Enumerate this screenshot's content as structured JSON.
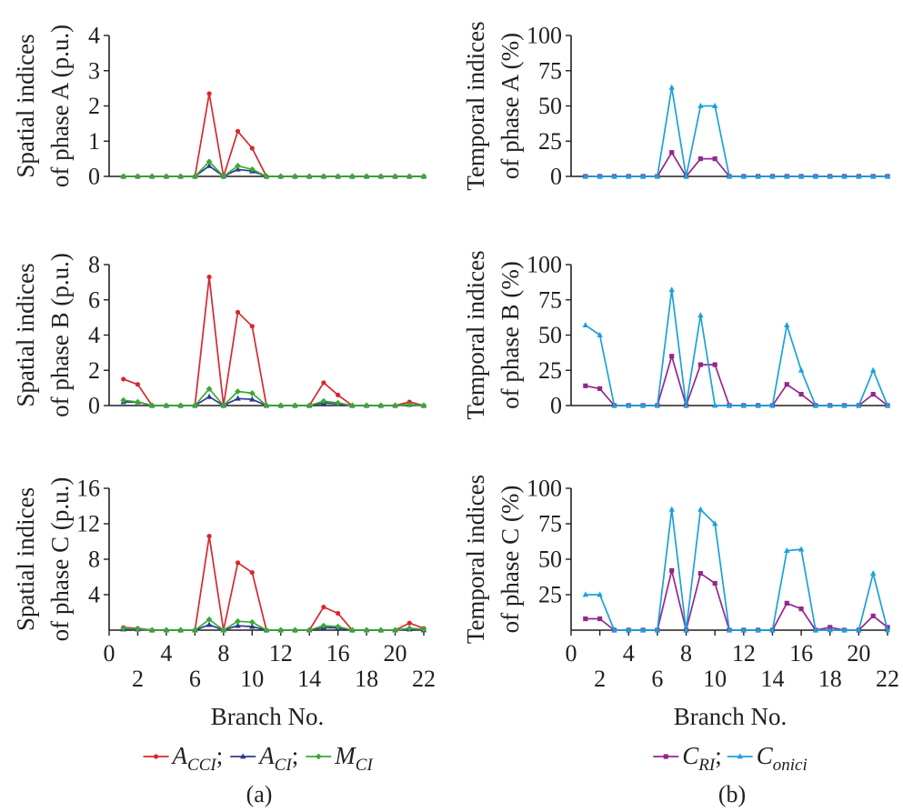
{
  "figure": {
    "panel_a_caption": "(a)",
    "panel_b_caption": "(b)",
    "x_axis_label": "Branch No.",
    "legend_a": [
      {
        "base": "A",
        "sub": "CCI",
        "sep": ";",
        "color": "#d7282f"
      },
      {
        "base": "A",
        "sub": "CI",
        "sep": ";",
        "color": "#2b3990"
      },
      {
        "base": "M",
        "sub": "CI",
        "sep": "",
        "color": "#3aaa35"
      }
    ],
    "legend_b": [
      {
        "base": "C",
        "sub": "RI",
        "sep": ";",
        "color": "#93278f"
      },
      {
        "base": "C",
        "sub": "onici",
        "sep": "",
        "color": "#1ba1d8"
      }
    ]
  },
  "chart_data": [
    {
      "type": "line",
      "panel": "a",
      "row": 0,
      "ylabel": [
        "Spatial indices",
        "of phase A (p.u.)"
      ],
      "xlim": [
        0,
        22
      ],
      "ylim": [
        0,
        4
      ],
      "yticks": [
        0,
        1,
        2,
        3,
        4
      ],
      "show_x_ticks": false,
      "x": [
        1,
        2,
        3,
        4,
        5,
        6,
        7,
        8,
        9,
        10,
        11,
        12,
        13,
        14,
        15,
        16,
        17,
        18,
        19,
        20,
        21,
        22
      ],
      "series": [
        {
          "name": "A_CCI",
          "color": "#d7282f",
          "marker": "circle",
          "values": [
            0,
            0,
            0,
            0,
            0,
            0,
            2.35,
            0,
            1.28,
            0.8,
            0,
            0,
            0,
            0,
            0,
            0,
            0,
            0,
            0,
            0,
            0,
            0
          ]
        },
        {
          "name": "A_CI",
          "color": "#2b3990",
          "marker": "triangle",
          "values": [
            0,
            0,
            0,
            0,
            0,
            0,
            0.3,
            0,
            0.2,
            0.15,
            0,
            0,
            0,
            0,
            0,
            0,
            0,
            0,
            0,
            0,
            0,
            0
          ]
        },
        {
          "name": "M_CI",
          "color": "#3aaa35",
          "marker": "diamond",
          "values": [
            0,
            0,
            0,
            0,
            0,
            0,
            0.42,
            0,
            0.3,
            0.2,
            0,
            0,
            0,
            0,
            0,
            0,
            0,
            0,
            0,
            0,
            0,
            0
          ]
        }
      ]
    },
    {
      "type": "line",
      "panel": "a",
      "row": 1,
      "ylabel": [
        "Spatial indices",
        "of phase B (p.u.)"
      ],
      "xlim": [
        0,
        22
      ],
      "ylim": [
        0,
        8
      ],
      "yticks": [
        0,
        2,
        4,
        6,
        8
      ],
      "show_x_ticks": false,
      "x": [
        1,
        2,
        3,
        4,
        5,
        6,
        7,
        8,
        9,
        10,
        11,
        12,
        13,
        14,
        15,
        16,
        17,
        18,
        19,
        20,
        21,
        22
      ],
      "series": [
        {
          "name": "A_CCI",
          "color": "#d7282f",
          "marker": "circle",
          "values": [
            1.5,
            1.2,
            0,
            0,
            0,
            0,
            7.3,
            0,
            5.3,
            4.5,
            0,
            0,
            0,
            0,
            1.3,
            0.6,
            0,
            0,
            0,
            0,
            0.2,
            0
          ]
        },
        {
          "name": "A_CI",
          "color": "#2b3990",
          "marker": "triangle",
          "values": [
            0.2,
            0.2,
            0,
            0,
            0,
            0,
            0.5,
            0,
            0.4,
            0.35,
            0,
            0,
            0,
            0,
            0.15,
            0.1,
            0,
            0,
            0,
            0,
            0.05,
            0
          ]
        },
        {
          "name": "M_CI",
          "color": "#3aaa35",
          "marker": "diamond",
          "values": [
            0.3,
            0.2,
            0,
            0,
            0,
            0,
            0.95,
            0,
            0.8,
            0.7,
            0,
            0,
            0,
            0,
            0.25,
            0.15,
            0,
            0,
            0,
            0,
            0.05,
            0
          ]
        }
      ]
    },
    {
      "type": "line",
      "panel": "a",
      "row": 2,
      "ylabel": [
        "Spatial indices",
        "of phase C (p.u.)"
      ],
      "xlim": [
        0,
        22
      ],
      "ylim": [
        0,
        16
      ],
      "yticks": [
        4,
        8,
        12,
        16
      ],
      "show_x_ticks": true,
      "x_tick_labels_top": [
        0,
        4,
        8,
        12,
        16,
        20
      ],
      "x_tick_labels_bottom": [
        2,
        6,
        10,
        14,
        18,
        22
      ],
      "x": [
        1,
        2,
        3,
        4,
        5,
        6,
        7,
        8,
        9,
        10,
        11,
        12,
        13,
        14,
        15,
        16,
        17,
        18,
        19,
        20,
        21,
        22
      ],
      "series": [
        {
          "name": "A_CCI",
          "color": "#d7282f",
          "marker": "circle",
          "values": [
            0.3,
            0.2,
            0,
            0,
            0,
            0,
            10.6,
            0,
            7.6,
            6.5,
            0,
            0,
            0,
            0,
            2.6,
            1.9,
            0,
            0,
            0,
            0,
            0.8,
            0.2
          ]
        },
        {
          "name": "A_CI",
          "color": "#2b3990",
          "marker": "triangle",
          "values": [
            0.1,
            0.1,
            0,
            0,
            0,
            0,
            0.6,
            0,
            0.5,
            0.4,
            0,
            0,
            0,
            0,
            0.3,
            0.25,
            0,
            0,
            0,
            0,
            0.1,
            0
          ]
        },
        {
          "name": "M_CI",
          "color": "#3aaa35",
          "marker": "diamond",
          "values": [
            0.2,
            0.15,
            0,
            0,
            0,
            0,
            1.2,
            0,
            1.0,
            0.9,
            0,
            0,
            0,
            0,
            0.5,
            0.4,
            0,
            0,
            0,
            0,
            0.2,
            0.1
          ]
        }
      ]
    },
    {
      "type": "line",
      "panel": "b",
      "row": 0,
      "ylabel": [
        "Temporal indices",
        "of phase A (%)"
      ],
      "xlim": [
        0,
        22
      ],
      "ylim": [
        0,
        100
      ],
      "yticks": [
        0,
        25,
        50,
        75,
        100
      ],
      "show_x_ticks": false,
      "x": [
        1,
        2,
        3,
        4,
        5,
        6,
        7,
        8,
        9,
        10,
        11,
        12,
        13,
        14,
        15,
        16,
        17,
        18,
        19,
        20,
        21,
        22
      ],
      "series": [
        {
          "name": "C_RI",
          "color": "#93278f",
          "marker": "square",
          "values": [
            0,
            0,
            0,
            0,
            0,
            0,
            17,
            0,
            12.5,
            12.5,
            0,
            0,
            0,
            0,
            0,
            0,
            0,
            0,
            0,
            0,
            0,
            0
          ]
        },
        {
          "name": "C_onici",
          "color": "#1ba1d8",
          "marker": "triangle",
          "values": [
            0,
            0,
            0,
            0,
            0,
            0,
            63,
            0,
            50,
            50,
            0,
            0,
            0,
            0,
            0,
            0,
            0,
            0,
            0,
            0,
            0,
            0
          ]
        }
      ]
    },
    {
      "type": "line",
      "panel": "b",
      "row": 1,
      "ylabel": [
        "Temporal indices",
        "of phase B (%)"
      ],
      "xlim": [
        0,
        22
      ],
      "ylim": [
        0,
        100
      ],
      "yticks": [
        0,
        25,
        50,
        75,
        100
      ],
      "show_x_ticks": false,
      "x": [
        1,
        2,
        3,
        4,
        5,
        6,
        7,
        8,
        9,
        10,
        11,
        12,
        13,
        14,
        15,
        16,
        17,
        18,
        19,
        20,
        21,
        22
      ],
      "series": [
        {
          "name": "C_RI",
          "color": "#93278f",
          "marker": "square",
          "values": [
            14,
            12,
            0,
            0,
            0,
            0,
            35,
            0,
            29,
            29,
            0,
            0,
            0,
            0,
            15,
            8,
            0,
            0,
            0,
            0,
            8,
            0
          ]
        },
        {
          "name": "C_onici",
          "color": "#1ba1d8",
          "marker": "triangle",
          "values": [
            57,
            50,
            0,
            0,
            0,
            0,
            82,
            0,
            64,
            0,
            0,
            0,
            0,
            0,
            57,
            25,
            0,
            0,
            0,
            0,
            25,
            0
          ]
        }
      ]
    },
    {
      "type": "line",
      "panel": "b",
      "row": 2,
      "ylabel": [
        "Temporal indices",
        "of phase C (%)"
      ],
      "xlim": [
        0,
        22
      ],
      "ylim": [
        0,
        100
      ],
      "yticks": [
        25,
        50,
        75,
        100
      ],
      "show_x_ticks": true,
      "x_tick_labels_top": [
        0,
        4,
        8,
        12,
        16,
        20
      ],
      "x_tick_labels_bottom": [
        2,
        6,
        10,
        14,
        18,
        22
      ],
      "x": [
        1,
        2,
        3,
        4,
        5,
        6,
        7,
        8,
        9,
        10,
        11,
        12,
        13,
        14,
        15,
        16,
        17,
        18,
        19,
        20,
        21,
        22
      ],
      "series": [
        {
          "name": "C_RI",
          "color": "#93278f",
          "marker": "square",
          "values": [
            8,
            8,
            0,
            0,
            0,
            0,
            42,
            0,
            40,
            33,
            0,
            0,
            0,
            0,
            19,
            15,
            0,
            2,
            0,
            0,
            10,
            2
          ]
        },
        {
          "name": "C_onici",
          "color": "#1ba1d8",
          "marker": "triangle",
          "values": [
            25,
            25,
            0,
            0,
            0,
            0,
            85,
            0,
            85,
            75,
            0,
            0,
            0,
            0,
            56,
            57,
            0,
            0,
            0,
            0,
            40,
            0
          ]
        }
      ]
    }
  ]
}
